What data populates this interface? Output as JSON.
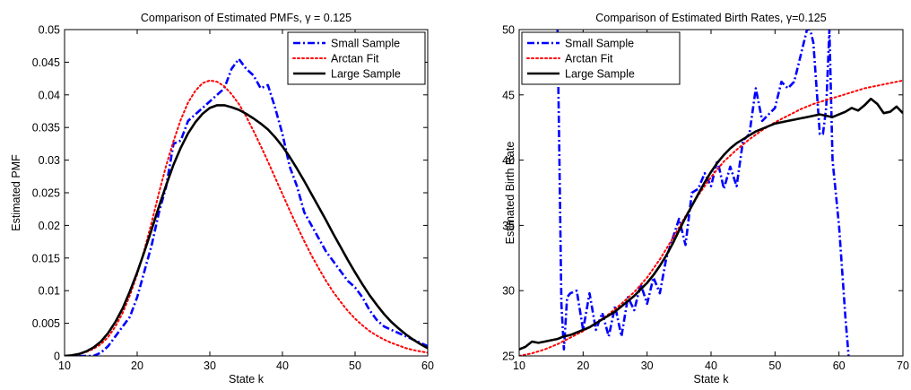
{
  "chart_data": [
    {
      "type": "line",
      "title": "Comparison of Estimated PMFs, γ = 0.125",
      "xlabel": "State k",
      "ylabel": "Estimated PMF",
      "xlim": [
        10,
        60
      ],
      "ylim": [
        0,
        0.05
      ],
      "xticks": [
        "10",
        "20",
        "30",
        "40",
        "50",
        "60"
      ],
      "yticks": [
        "0",
        "0.005",
        "0.01",
        "0.015",
        "0.02",
        "0.025",
        "0.03",
        "0.035",
        "0.04",
        "0.045",
        "0.05"
      ],
      "legend_position": "top-right",
      "grid": false,
      "series": [
        {
          "name": "Small Sample",
          "color": "#0000ff",
          "style": "dashdot",
          "x": [
            10,
            12,
            14,
            15,
            16,
            17,
            18,
            19,
            20,
            21,
            22,
            23,
            24,
            25,
            26,
            27,
            28,
            29,
            30,
            31,
            32,
            33,
            34,
            35,
            36,
            37,
            38,
            39,
            40,
            41,
            42,
            43,
            44,
            45,
            46,
            47,
            48,
            49,
            50,
            51,
            52,
            53,
            54,
            55,
            56,
            57,
            58,
            59,
            60
          ],
          "y": [
            0,
            0,
            0,
            0.0005,
            0.0015,
            0.003,
            0.0045,
            0.006,
            0.009,
            0.013,
            0.017,
            0.022,
            0.026,
            0.0325,
            0.033,
            0.036,
            0.037,
            0.038,
            0.039,
            0.04,
            0.041,
            0.044,
            0.0455,
            0.044,
            0.043,
            0.041,
            0.0415,
            0.038,
            0.034,
            0.029,
            0.026,
            0.022,
            0.02,
            0.018,
            0.016,
            0.0145,
            0.013,
            0.0115,
            0.0105,
            0.009,
            0.007,
            0.0055,
            0.0045,
            0.004,
            0.0035,
            0.003,
            0.0025,
            0.002,
            0.0015
          ]
        },
        {
          "name": "Arctan Fit",
          "color": "#ff0000",
          "style": "dotted",
          "x": [
            10,
            11,
            12,
            13,
            14,
            15,
            16,
            17,
            18,
            19,
            20,
            21,
            22,
            23,
            24,
            25,
            26,
            27,
            28,
            29,
            30,
            31,
            32,
            33,
            34,
            35,
            36,
            37,
            38,
            39,
            40,
            41,
            42,
            43,
            44,
            45,
            46,
            47,
            48,
            49,
            50,
            51,
            52,
            53,
            54,
            55,
            56,
            57,
            58,
            59,
            60
          ],
          "y": [
            0,
            0.0001,
            0.0003,
            0.0006,
            0.0011,
            0.0018,
            0.0029,
            0.0045,
            0.0066,
            0.0093,
            0.0125,
            0.0163,
            0.0205,
            0.025,
            0.0292,
            0.0329,
            0.0362,
            0.0388,
            0.0406,
            0.0418,
            0.0422,
            0.042,
            0.0413,
            0.0401,
            0.0386,
            0.0367,
            0.0345,
            0.0322,
            0.0298,
            0.0273,
            0.0248,
            0.0223,
            0.0199,
            0.0176,
            0.0154,
            0.0134,
            0.0115,
            0.0098,
            0.0083,
            0.0069,
            0.0057,
            0.0047,
            0.0038,
            0.0031,
            0.0025,
            0.002,
            0.0016,
            0.0012,
            0.0009,
            0.0007,
            0.0005
          ]
        },
        {
          "name": "Large Sample",
          "color": "#000000",
          "style": "solid",
          "x": [
            10,
            11,
            12,
            13,
            14,
            15,
            16,
            17,
            18,
            19,
            20,
            21,
            22,
            23,
            24,
            25,
            26,
            27,
            28,
            29,
            30,
            31,
            32,
            33,
            34,
            35,
            36,
            37,
            38,
            39,
            40,
            41,
            42,
            43,
            44,
            45,
            46,
            47,
            48,
            49,
            50,
            51,
            52,
            53,
            54,
            55,
            56,
            57,
            58,
            59,
            60
          ],
          "y": [
            0,
            0.0001,
            0.0003,
            0.0007,
            0.0013,
            0.0022,
            0.0035,
            0.0052,
            0.0073,
            0.0099,
            0.0128,
            0.016,
            0.0194,
            0.0229,
            0.0262,
            0.0293,
            0.0319,
            0.0341,
            0.0358,
            0.0371,
            0.038,
            0.0384,
            0.0384,
            0.0381,
            0.0377,
            0.0371,
            0.0364,
            0.0356,
            0.0347,
            0.0335,
            0.0321,
            0.0305,
            0.0287,
            0.0268,
            0.0248,
            0.0228,
            0.0208,
            0.0187,
            0.0167,
            0.0147,
            0.0128,
            0.011,
            0.0093,
            0.0078,
            0.0064,
            0.0052,
            0.0042,
            0.0033,
            0.0025,
            0.0018,
            0.0012
          ]
        }
      ]
    },
    {
      "type": "line",
      "title": "Comparison of Estimated Birth Rates, γ=0.125",
      "xlabel": "State k",
      "ylabel": "Estimated Birth Rate",
      "xlim": [
        10,
        70
      ],
      "ylim": [
        25,
        50
      ],
      "xticks": [
        "10",
        "20",
        "30",
        "40",
        "50",
        "60",
        "70"
      ],
      "yticks": [
        "25",
        "30",
        "35",
        "40",
        "45",
        "50"
      ],
      "legend_position": "top-left",
      "grid": false,
      "series": [
        {
          "name": "Small Sample",
          "color": "#0000ff",
          "style": "dashdot",
          "x": [
            16,
            16.3,
            16.6,
            17,
            17.5,
            18,
            19,
            20,
            21,
            22,
            23,
            24,
            25,
            26,
            27,
            28,
            29,
            30,
            31,
            32,
            33,
            34,
            35,
            36,
            37,
            38,
            39,
            40,
            41,
            42,
            43,
            44,
            45,
            46,
            47,
            48,
            49,
            50,
            51,
            52,
            53,
            54,
            55,
            55.5,
            56,
            57,
            57.5,
            58,
            58.5,
            59,
            60,
            61,
            61.5
          ],
          "y": [
            50,
            40,
            29,
            25.5,
            29.5,
            29.8,
            30,
            27,
            29.8,
            27,
            28.3,
            26.5,
            28.8,
            26.5,
            29.5,
            28.5,
            30.5,
            29,
            31,
            29.8,
            32.5,
            34,
            35.5,
            33.5,
            37.5,
            37.8,
            39,
            38,
            40,
            37.8,
            39.5,
            38,
            41.5,
            42,
            45.5,
            43,
            43.5,
            44,
            46,
            45.5,
            46,
            48,
            50,
            50,
            49,
            42,
            42,
            44,
            50,
            40,
            35,
            28,
            25
          ]
        },
        {
          "name": "Arctan Fit",
          "color": "#ff0000",
          "style": "dotted",
          "x": [
            10,
            12,
            14,
            16,
            18,
            20,
            22,
            24,
            26,
            28,
            30,
            32,
            34,
            36,
            38,
            40,
            42,
            44,
            46,
            48,
            50,
            52,
            54,
            56,
            58,
            60,
            62,
            64,
            66,
            68,
            70
          ],
          "y": [
            25,
            25.2,
            25.5,
            25.9,
            26.4,
            26.9,
            27.5,
            28.2,
            29,
            29.9,
            31,
            32.4,
            34,
            35.7,
            37.3,
            38.7,
            39.9,
            40.8,
            41.6,
            42.3,
            42.9,
            43.4,
            43.9,
            44.3,
            44.6,
            44.9,
            45.2,
            45.5,
            45.7,
            45.9,
            46.1
          ]
        },
        {
          "name": "Large Sample",
          "color": "#000000",
          "style": "solid",
          "x": [
            10,
            11,
            12,
            13,
            14,
            15,
            16,
            17,
            18,
            19,
            20,
            21,
            22,
            23,
            24,
            25,
            26,
            27,
            28,
            29,
            30,
            31,
            32,
            33,
            34,
            35,
            36,
            37,
            38,
            39,
            40,
            41,
            42,
            43,
            44,
            45,
            46,
            47,
            48,
            49,
            50,
            51,
            52,
            53,
            54,
            55,
            56,
            57,
            58,
            59,
            60,
            61,
            62,
            63,
            64,
            65,
            66,
            67,
            68,
            69,
            70
          ],
          "y": [
            25.5,
            25.7,
            26.1,
            26,
            26.1,
            26.2,
            26.3,
            26.5,
            26.6,
            26.8,
            27,
            27.2,
            27.5,
            27.8,
            28.1,
            28.4,
            28.8,
            29.2,
            29.6,
            30.1,
            30.6,
            31.2,
            31.9,
            32.7,
            33.6,
            34.6,
            35.6,
            36.5,
            37.4,
            38.3,
            39.1,
            39.8,
            40.4,
            40.9,
            41.3,
            41.6,
            41.9,
            42.2,
            42.4,
            42.6,
            42.8,
            42.9,
            43,
            43.1,
            43.2,
            43.3,
            43.4,
            43.5,
            43.4,
            43.3,
            43.5,
            43.7,
            44,
            43.8,
            44.2,
            44.7,
            44.3,
            43.6,
            43.7,
            44.1,
            43.6
          ]
        }
      ]
    }
  ]
}
